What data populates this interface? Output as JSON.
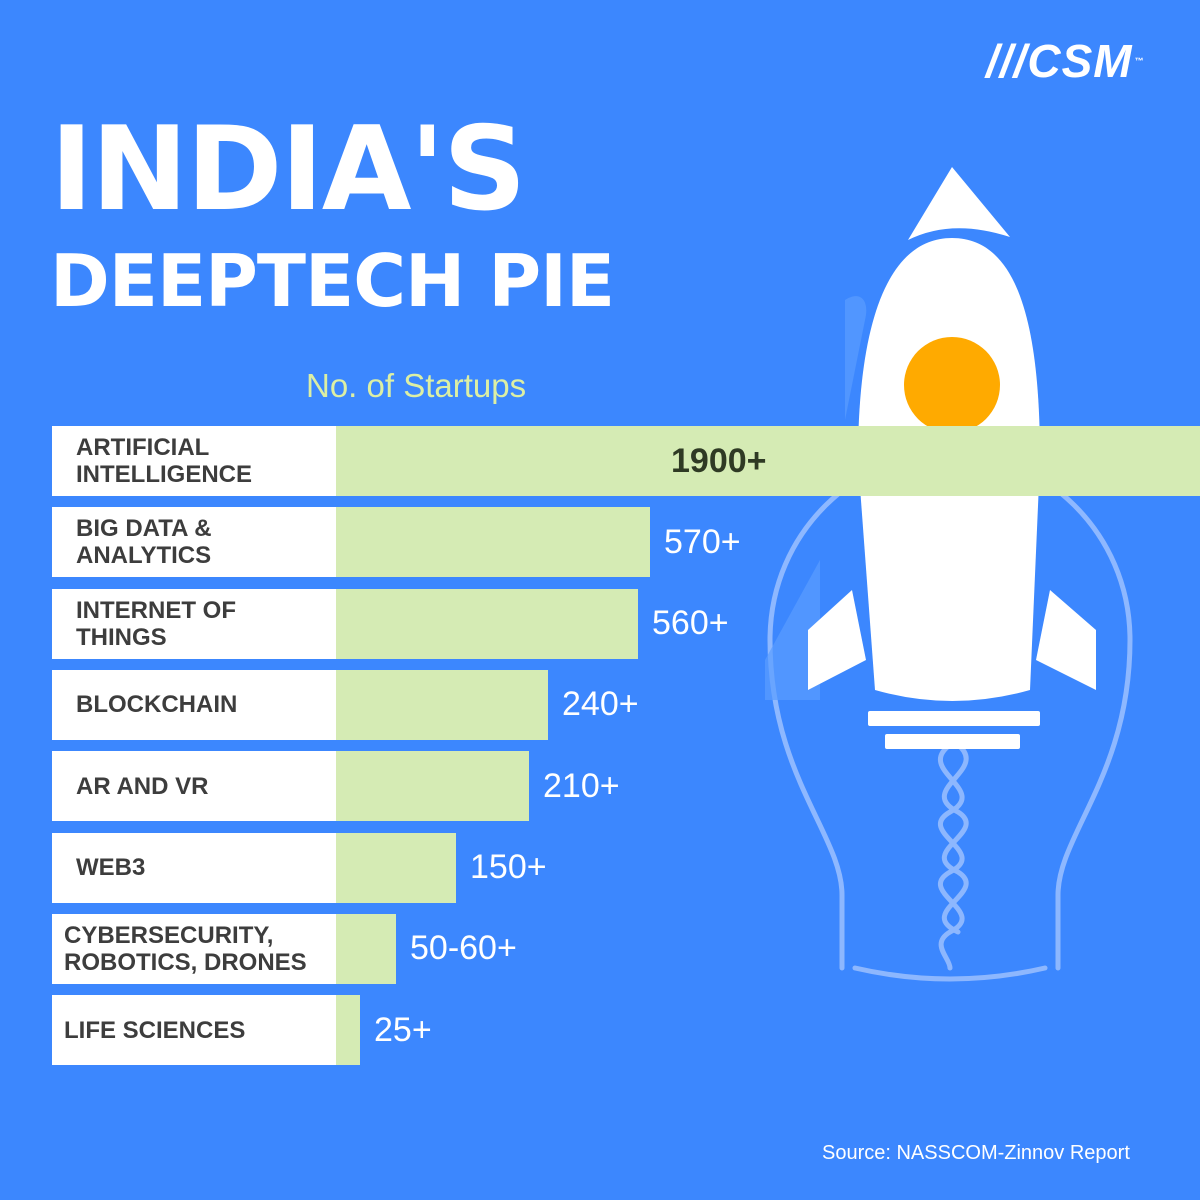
{
  "brand": {
    "logo_text": "CSM",
    "tm": "™"
  },
  "heading": {
    "line1": "INDIA'S",
    "line2": "DEEPTECH PIE"
  },
  "colors": {
    "background": "#3c87fe",
    "bar_fill": "#d5ebb4",
    "label_box": "#ffffff",
    "subtitle": "#dcefa4",
    "rocket_window": "#ffaa00"
  },
  "chart_data": {
    "type": "bar",
    "orientation": "horizontal",
    "title": "No. of Startups",
    "categories": [
      "ARTIFICIAL INTELLIGENCE",
      "BIG DATA & ANALYTICS",
      "INTERNET OF THINGS",
      "BLOCKCHAIN",
      "AR AND VR",
      "WEB3",
      "CYBERSECURITY, ROBOTICS, DRONES",
      "LIFE SCIENCES"
    ],
    "values": [
      1900,
      570,
      560,
      240,
      210,
      150,
      55,
      25
    ],
    "value_labels": [
      "1900+",
      "570+",
      "560+",
      "240+",
      "210+",
      "150+",
      "50-60+",
      "25+"
    ],
    "source": "Source: NASSCOM-Zinnov Report"
  },
  "icons": [
    "rocket-icon",
    "lightbulb-icon"
  ]
}
